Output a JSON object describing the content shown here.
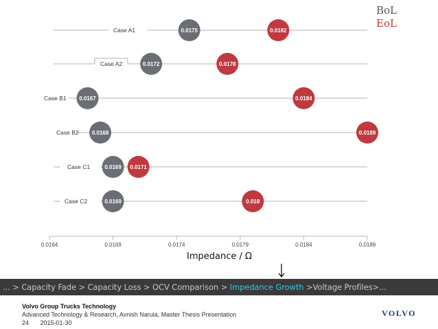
{
  "chart_data": {
    "type": "scatter",
    "title": "",
    "xlabel": "Impedance / Ω",
    "ylabel": "",
    "xlim": [
      0.0164,
      0.0189
    ],
    "xticks": [
      "0.0164",
      "0.0169",
      "0.0174",
      "0.0179",
      "0.0184",
      "0.0189"
    ],
    "xtick_values": [
      0.0164,
      0.0169,
      0.0174,
      0.0179,
      0.0184,
      0.0189
    ],
    "categories": [
      "Case A1",
      "Case A2",
      "Case B1",
      "Case B2",
      "Case C1",
      "Case C2"
    ],
    "series": [
      {
        "name": "BoL",
        "color": "#6b6e74",
        "values": [
          0.0175,
          0.0172,
          0.0167,
          0.0168,
          0.0169,
          0.0169
        ],
        "labels": [
          "0.0175",
          "0.0172",
          "0.0167",
          "0.0168",
          "0.0169",
          "0.0169"
        ]
      },
      {
        "name": "EoL",
        "color": "#c0393f",
        "values": [
          0.0182,
          0.0178,
          0.0184,
          0.0189,
          0.0171,
          0.018
        ],
        "labels": [
          "0.0182",
          "0.0178",
          "0.0184",
          "0.0189",
          "0.0171",
          "0.018"
        ]
      }
    ],
    "legend": [
      {
        "label": "BoL",
        "color": "#555555"
      },
      {
        "label": "EoL",
        "color": "#c0392b"
      }
    ],
    "grid": false,
    "legend_position": "top-right"
  },
  "nav": {
    "items": [
      {
        "label": "... ",
        "highlight": false
      },
      {
        "label": "> Capacity Fade ",
        "highlight": false
      },
      {
        "label": "> Capacity Loss ",
        "highlight": false
      },
      {
        "label": "> OCV Comparison ",
        "highlight": false
      },
      {
        "label": "> ",
        "highlight": false
      },
      {
        "label": "Impedance Growth",
        "highlight": true
      },
      {
        "label": " >Voltage Profiles>...",
        "highlight": false
      }
    ],
    "highlight_color": "#35c7e8"
  },
  "footer": {
    "org": "Volvo Group Trucks Technology",
    "subtitle": "Advanced Technology & Research, Avnish Narula, Master Thesis Presentation",
    "page": "24",
    "date": "2015-01-30",
    "logo": "VOLVO"
  }
}
